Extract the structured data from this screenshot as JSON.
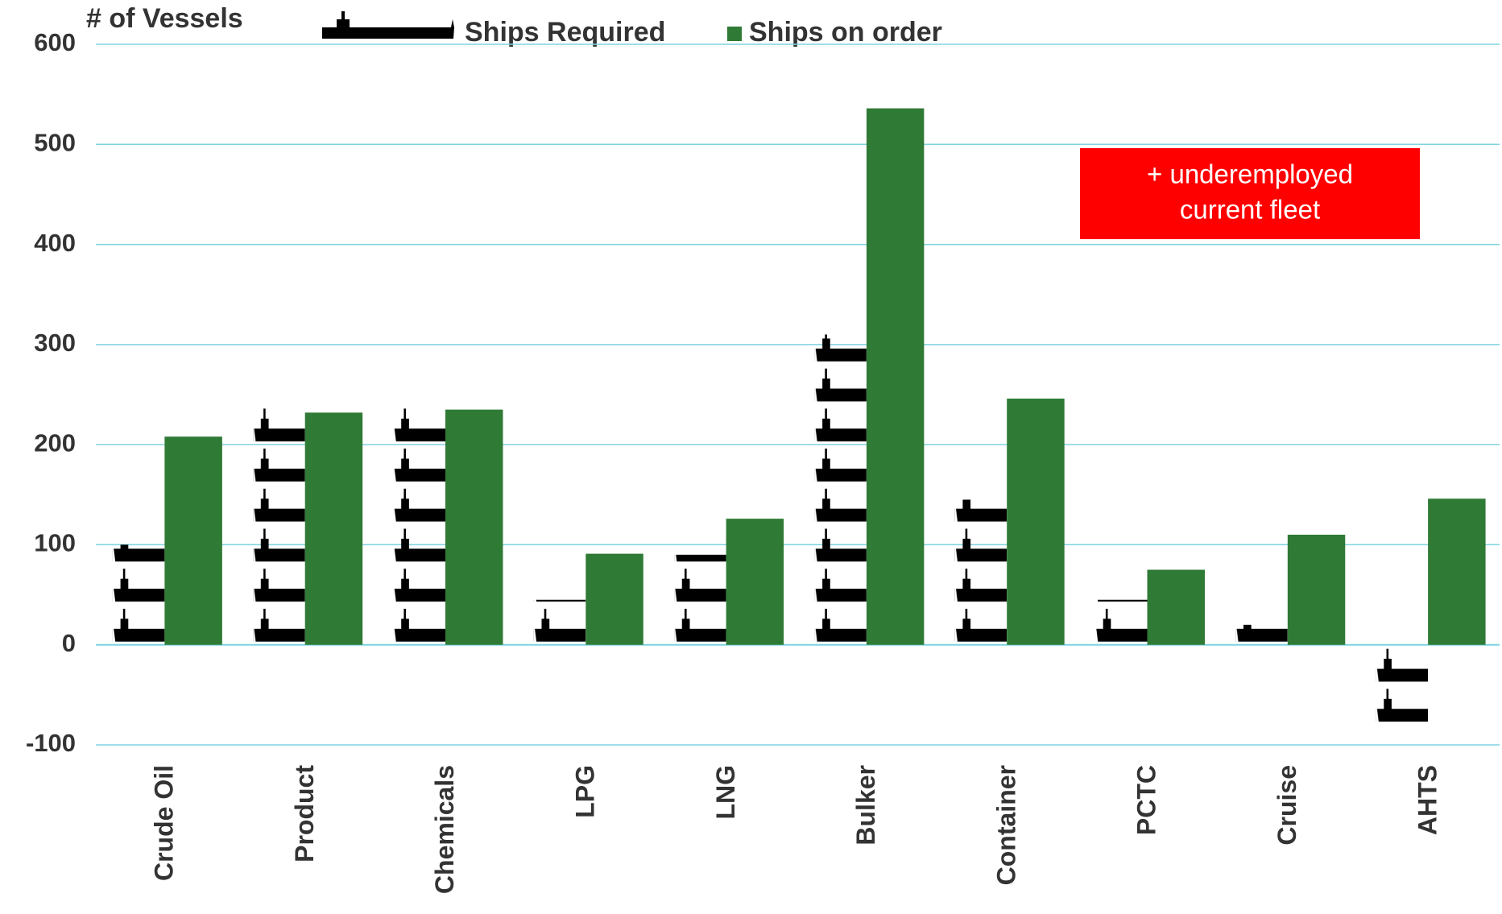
{
  "chart_data": {
    "type": "bar",
    "y_label": "# of Vessels",
    "annotation": [
      "+ underemployed",
      "current fleet"
    ],
    "categories": [
      "Crude Oil",
      "Product",
      "Chemicals",
      "LPG",
      "LNG",
      "Bulker",
      "Container",
      "PCTC",
      "Cruise",
      "AHTS"
    ],
    "series": [
      {
        "name": "Ships Required",
        "color": "#000000",
        "values": [
          100,
          240,
          240,
          45,
          90,
          310,
          145,
          45,
          20,
          -80
        ]
      },
      {
        "name": "Ships on order",
        "color": "#2f7a35",
        "values": [
          208,
          232,
          235,
          91,
          126,
          536,
          246,
          75,
          110,
          146
        ]
      }
    ],
    "ylim": [
      -100,
      600
    ],
    "yticks": [
      -100,
      0,
      100,
      200,
      300,
      400,
      500,
      600
    ],
    "grid": true
  }
}
